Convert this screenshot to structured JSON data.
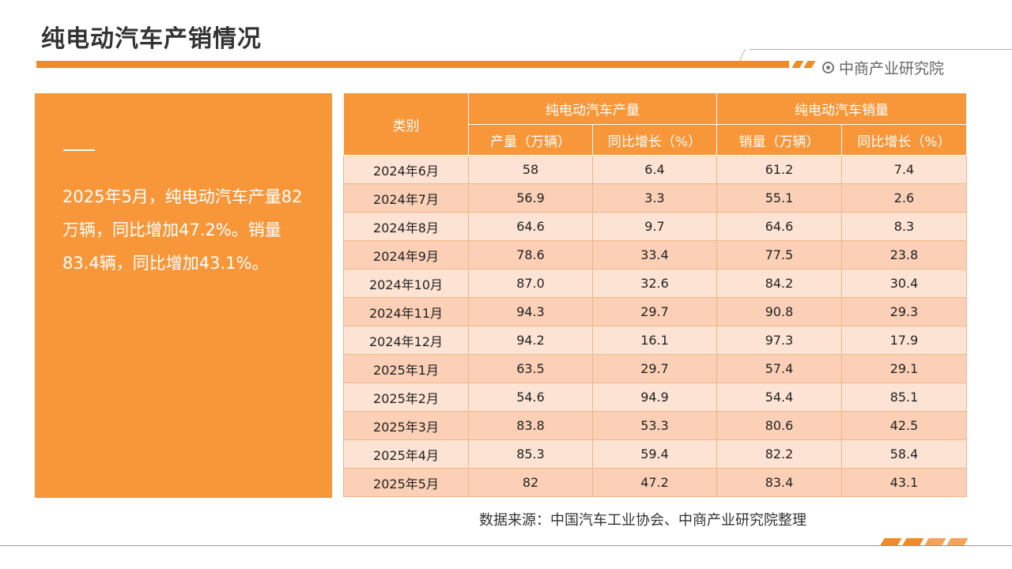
{
  "page": {
    "title": "纯电动汽车产销情况"
  },
  "brand": {
    "name": "中商产业研究院",
    "icon": "target-icon"
  },
  "summary": {
    "text": "2025年5月，纯电动汽车产量82万辆，同比增加47.2%。销量83.4辆，同比增加43.1%。"
  },
  "table": {
    "category_header": "类别",
    "production_group": "纯电动汽车产量",
    "sales_group": "纯电动汽车销量",
    "columns": [
      "产量（万辆）",
      "同比增长（%）",
      "销量（万辆）",
      "同比增长（%）"
    ],
    "rows": [
      [
        "2024年6月",
        "58",
        "6.4",
        "61.2",
        "7.4"
      ],
      [
        "2024年7月",
        "56.9",
        "3.3",
        "55.1",
        "2.6"
      ],
      [
        "2024年8月",
        "64.6",
        "9.7",
        "64.6",
        "8.3"
      ],
      [
        "2024年9月",
        "78.6",
        "33.4",
        "77.5",
        "23.8"
      ],
      [
        "2024年10月",
        "87.0",
        "32.6",
        "84.2",
        "30.4"
      ],
      [
        "2024年11月",
        "94.3",
        "29.7",
        "90.8",
        "29.3"
      ],
      [
        "2024年12月",
        "94.2",
        "16.1",
        "97.3",
        "17.9"
      ],
      [
        "2025年1月",
        "63.5",
        "29.7",
        "57.4",
        "29.1"
      ],
      [
        "2025年2月",
        "54.6",
        "94.9",
        "54.4",
        "85.1"
      ],
      [
        "2025年3月",
        "83.8",
        "53.3",
        "80.6",
        "42.5"
      ],
      [
        "2025年4月",
        "85.3",
        "59.4",
        "82.2",
        "58.4"
      ],
      [
        "2025年5月",
        "82",
        "47.2",
        "83.4",
        "43.1"
      ]
    ]
  },
  "source": "数据来源：中国汽车工业协会、中商产业研究院整理",
  "colors": {
    "accent": "#f7973a",
    "row_light": "#fde3d3",
    "row_dark": "#fbd0b7"
  }
}
